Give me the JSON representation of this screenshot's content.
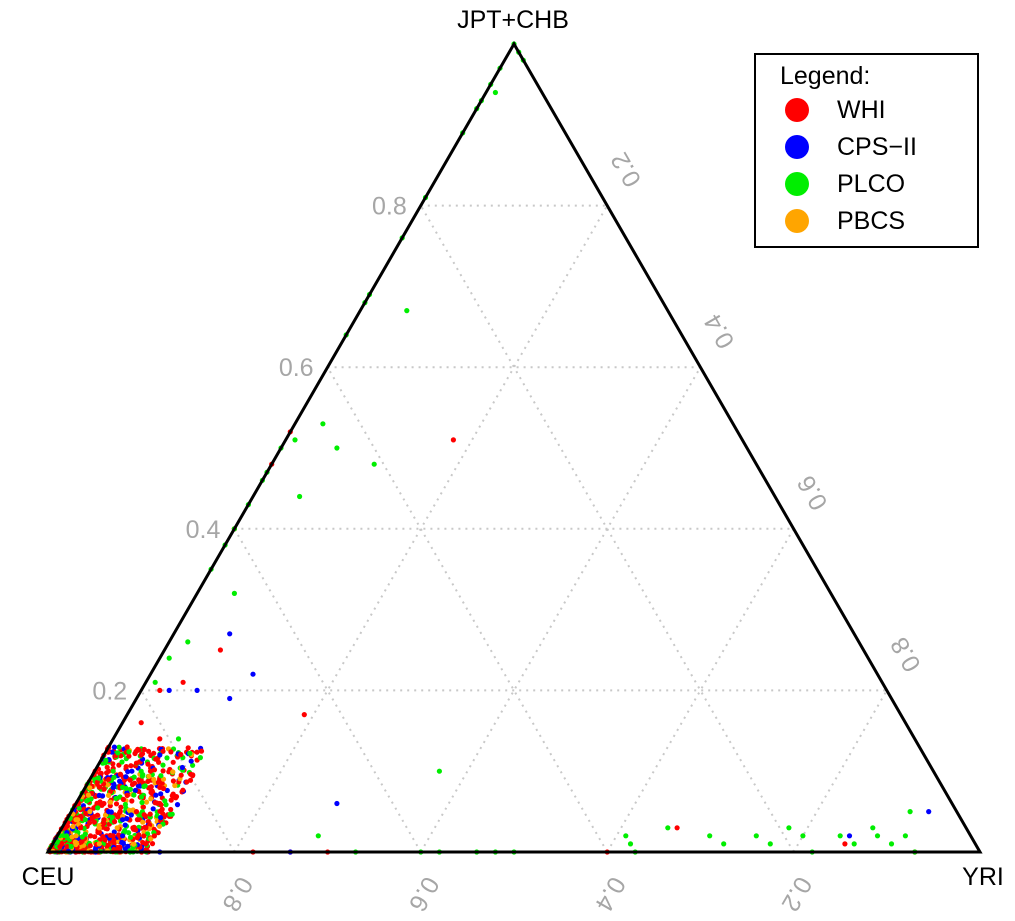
{
  "chart_data": {
    "type": "scatter",
    "subtype": "ternary",
    "vertices": {
      "top": "JPT+CHB",
      "left": "CEU",
      "right": "YRI"
    },
    "grid": true,
    "axis_ticks": {
      "top_component": [
        "0.2",
        "0.4",
        "0.6",
        "0.8"
      ],
      "right_component_on_left_edge": [
        "0.2",
        "0.4",
        "0.6",
        "0.8"
      ],
      "left_component_on_bottom_edge": [
        "0.8",
        "0.6",
        "0.4",
        "0.2"
      ]
    },
    "legend": {
      "title": "Legend:",
      "position": "top-right",
      "entries": [
        {
          "label": "WHI",
          "color": "#ff0000"
        },
        {
          "label": "CPS−II",
          "color": "#0000ff"
        },
        {
          "label": "PLCO",
          "color": "#00ee00"
        },
        {
          "label": "PBCS",
          "color": "#ffa500"
        }
      ]
    },
    "series": [
      {
        "name": "WHI",
        "color": "#ff0000",
        "points": [
          {
            "top": 0.52,
            "right": 0.0
          },
          {
            "top": 0.48,
            "right": 0.0
          },
          {
            "top": 0.4,
            "right": 0.0
          },
          {
            "top": 0.4,
            "right": 0.0
          },
          {
            "top": 0.51,
            "right": 0.18
          },
          {
            "top": 0.25,
            "right": 0.06
          },
          {
            "top": 0.21,
            "right": 0.04
          },
          {
            "top": 0.2,
            "right": 0.02
          },
          {
            "top": 0.17,
            "right": 0.19
          },
          {
            "top": 0.16,
            "right": 0.02
          },
          {
            "top": 0.14,
            "right": 0.05
          },
          {
            "top": 0.13,
            "right": 0.02
          },
          {
            "top": 0.12,
            "right": 0.04
          },
          {
            "top": 0.11,
            "right": 0.04
          },
          {
            "top": 0.1,
            "right": 0.06
          },
          {
            "top": 0.09,
            "right": 0.02
          },
          {
            "top": 0.08,
            "right": 0.08
          },
          {
            "top": 0.07,
            "right": 0.05
          },
          {
            "top": 0.06,
            "right": 0.03
          },
          {
            "top": 0.05,
            "right": 0.07
          },
          {
            "top": 0.04,
            "right": 0.04
          },
          {
            "top": 0.03,
            "right": 0.02
          },
          {
            "top": 0.02,
            "right": 0.06
          },
          {
            "top": 0.01,
            "right": 0.01
          },
          {
            "top": 0.06,
            "right": 0.09
          },
          {
            "top": 0.03,
            "right": 0.09
          },
          {
            "top": 0.01,
            "right": 0.1
          },
          {
            "top": 0.0,
            "right": 0.22
          },
          {
            "top": 0.0,
            "right": 0.26
          },
          {
            "top": 0.0,
            "right": 0.3
          },
          {
            "top": 0.0,
            "right": 0.6
          },
          {
            "top": 0.03,
            "right": 0.66
          },
          {
            "top": 0.01,
            "right": 0.85
          },
          {
            "top": 0.0,
            "right": 0.93
          }
        ]
      },
      {
        "name": "CPS−II",
        "color": "#0000ff",
        "points": [
          {
            "top": 0.27,
            "right": 0.06
          },
          {
            "top": 0.22,
            "right": 0.11
          },
          {
            "top": 0.2,
            "right": 0.03
          },
          {
            "top": 0.2,
            "right": 0.06
          },
          {
            "top": 0.19,
            "right": 0.1
          },
          {
            "top": 0.12,
            "right": 0.06
          },
          {
            "top": 0.1,
            "right": 0.04
          },
          {
            "top": 0.08,
            "right": 0.03
          },
          {
            "top": 0.07,
            "right": 0.02
          },
          {
            "top": 0.05,
            "right": 0.04
          },
          {
            "top": 0.04,
            "right": 0.06
          },
          {
            "top": 0.02,
            "right": 0.07
          },
          {
            "top": 0.06,
            "right": 0.28
          },
          {
            "top": 0.02,
            "right": 0.85
          },
          {
            "top": 0.05,
            "right": 0.92
          },
          {
            "top": 0.0,
            "right": 0.12
          },
          {
            "top": 0.0,
            "right": 0.26
          }
        ]
      },
      {
        "name": "PLCO",
        "color": "#00ee00",
        "points": [
          {
            "top": 1.0,
            "right": 0.0
          },
          {
            "top": 0.99,
            "right": 0.01
          },
          {
            "top": 0.98,
            "right": 0.02
          },
          {
            "top": 0.97,
            "right": 0.0
          },
          {
            "top": 0.95,
            "right": 0.0
          },
          {
            "top": 0.94,
            "right": 0.01
          },
          {
            "top": 0.93,
            "right": 0.0
          },
          {
            "top": 0.92,
            "right": 0.0
          },
          {
            "top": 0.89,
            "right": 0.0
          },
          {
            "top": 0.81,
            "right": 0.0
          },
          {
            "top": 0.76,
            "right": 0.0
          },
          {
            "top": 0.69,
            "right": 0.0
          },
          {
            "top": 0.68,
            "right": 0.0
          },
          {
            "top": 0.64,
            "right": 0.0
          },
          {
            "top": 0.67,
            "right": 0.05
          },
          {
            "top": 0.53,
            "right": 0.03
          },
          {
            "top": 0.51,
            "right": 0.01
          },
          {
            "top": 0.5,
            "right": 0.0
          },
          {
            "top": 0.47,
            "right": 0.0
          },
          {
            "top": 0.46,
            "right": 0.0
          },
          {
            "top": 0.43,
            "right": 0.0
          },
          {
            "top": 0.48,
            "right": 0.11
          },
          {
            "top": 0.5,
            "right": 0.06
          },
          {
            "top": 0.44,
            "right": 0.05
          },
          {
            "top": 0.4,
            "right": 0.0
          },
          {
            "top": 0.38,
            "right": 0.0
          },
          {
            "top": 0.35,
            "right": 0.0
          },
          {
            "top": 0.32,
            "right": 0.04
          },
          {
            "top": 0.26,
            "right": 0.02
          },
          {
            "top": 0.24,
            "right": 0.01
          },
          {
            "top": 0.21,
            "right": 0.01
          },
          {
            "top": 0.14,
            "right": 0.07
          },
          {
            "top": 0.1,
            "right": 0.02
          },
          {
            "top": 0.1,
            "right": 0.05
          },
          {
            "top": 0.08,
            "right": 0.04
          },
          {
            "top": 0.04,
            "right": 0.02
          },
          {
            "top": 0.02,
            "right": 0.01
          },
          {
            "top": 0.1,
            "right": 0.37
          },
          {
            "top": 0.02,
            "right": 0.28
          },
          {
            "top": 0.0,
            "right": 0.33
          },
          {
            "top": 0.0,
            "right": 0.4
          },
          {
            "top": 0.0,
            "right": 0.42
          },
          {
            "top": 0.0,
            "right": 0.46
          },
          {
            "top": 0.0,
            "right": 0.48
          },
          {
            "top": 0.0,
            "right": 0.5
          },
          {
            "top": 0.02,
            "right": 0.61
          },
          {
            "top": 0.01,
            "right": 0.62
          },
          {
            "top": 0.0,
            "right": 0.63
          },
          {
            "top": 0.03,
            "right": 0.65
          },
          {
            "top": 0.02,
            "right": 0.7
          },
          {
            "top": 0.01,
            "right": 0.72
          },
          {
            "top": 0.02,
            "right": 0.75
          },
          {
            "top": 0.01,
            "right": 0.77
          },
          {
            "top": 0.03,
            "right": 0.78
          },
          {
            "top": 0.02,
            "right": 0.8
          },
          {
            "top": 0.0,
            "right": 0.82
          },
          {
            "top": 0.02,
            "right": 0.84
          },
          {
            "top": 0.01,
            "right": 0.86
          },
          {
            "top": 0.03,
            "right": 0.87
          },
          {
            "top": 0.02,
            "right": 0.88
          },
          {
            "top": 0.05,
            "right": 0.9
          },
          {
            "top": 0.01,
            "right": 0.9
          },
          {
            "top": 0.02,
            "right": 0.91
          },
          {
            "top": 0.0,
            "right": 0.93
          }
        ]
      },
      {
        "name": "PBCS",
        "color": "#ffa500",
        "points": [
          {
            "top": 0.05,
            "right": 0.02
          },
          {
            "top": 0.03,
            "right": 0.04
          },
          {
            "top": 0.02,
            "right": 0.02
          },
          {
            "top": 0.07,
            "right": 0.03
          },
          {
            "top": 0.01,
            "right": 0.05
          },
          {
            "top": 0.04,
            "right": 0.01
          }
        ]
      }
    ]
  }
}
